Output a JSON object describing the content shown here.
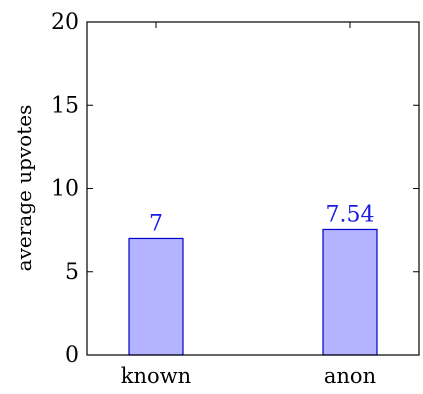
{
  "chart_data": {
    "type": "bar",
    "categories": [
      "known",
      "anon"
    ],
    "values": [
      7,
      7.54
    ],
    "data_labels": [
      "7",
      "7.54"
    ],
    "title": "",
    "xlabel": "",
    "ylabel": "average upvotes",
    "ylim": [
      0,
      20
    ],
    "yticks": [
      0,
      5,
      10,
      15,
      20
    ],
    "ytick_labels": [
      "0",
      "5",
      "10",
      "15",
      "20"
    ],
    "grid": false,
    "bar_fill": "#b3b3ff",
    "bar_stroke": "#0000cc",
    "label_color": "#1a1ae6"
  }
}
